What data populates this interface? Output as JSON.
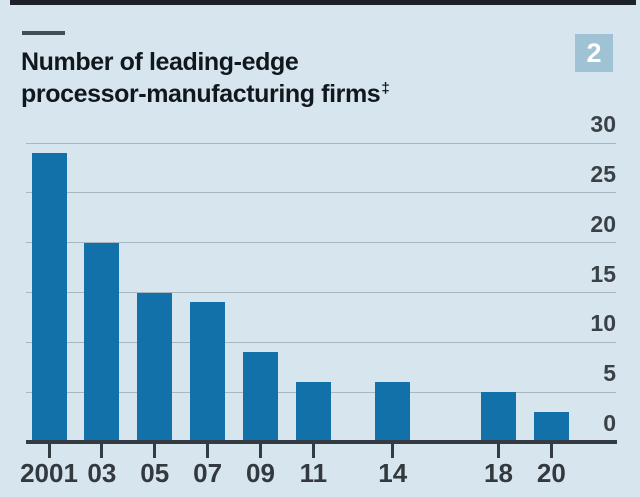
{
  "badge": {
    "label": "2"
  },
  "title": {
    "line1": "Number of leading-edge",
    "line2": "processor-manufacturing firms",
    "footnote_marker": "‡"
  },
  "colors": {
    "background": "#d7e6ee",
    "bar": "#1171a8",
    "badge_bg": "#9fc2d5",
    "badge_text": "#ffffff",
    "gridline": "#a9b7c1",
    "axis": "#343c42",
    "title_text": "#10181d",
    "tick_label": "#3a4147"
  },
  "chart_data": {
    "type": "bar",
    "title": "Number of leading-edge processor-manufacturing firms‡",
    "x": [
      2001,
      2003,
      2005,
      2007,
      2009,
      2011,
      2014,
      2018,
      2020
    ],
    "categories": [
      "2001",
      "03",
      "05",
      "07",
      "09",
      "11",
      "14",
      "18",
      "20"
    ],
    "values": [
      29,
      20,
      15,
      14,
      9,
      6,
      6,
      5,
      3
    ],
    "xlabel": "",
    "ylabel": "",
    "ylim": [
      0,
      30
    ],
    "yticks": [
      0,
      5,
      10,
      15,
      20,
      25,
      30
    ],
    "grid": true,
    "y_axis_side": "right",
    "x_axis_type": "linear-years",
    "legend": "none"
  }
}
